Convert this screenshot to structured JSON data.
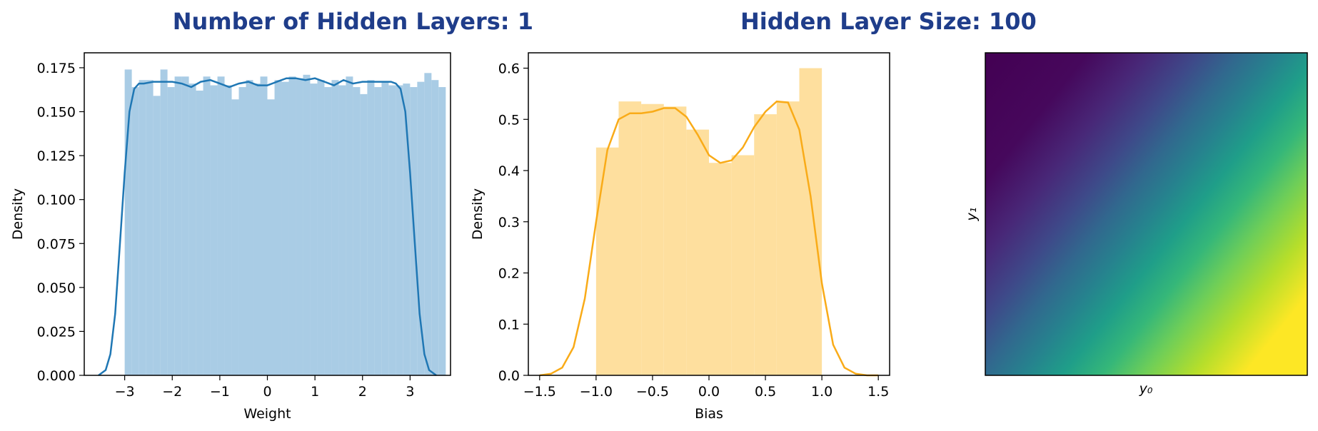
{
  "suptitle": {
    "left": "Number of Hidden Layers: 1",
    "right": "Hidden Layer Size: 100",
    "color": "#1f3d8a"
  },
  "chart_data": [
    {
      "type": "bar",
      "subtype": "histogram-with-kde",
      "xlabel": "Weight",
      "ylabel": "Density",
      "xlim": [
        -3.85,
        3.85
      ],
      "ylim": [
        0,
        0.1835
      ],
      "xticks": [
        -3,
        -2,
        -1,
        0,
        1,
        2,
        3
      ],
      "xtick_labels": [
        "−3",
        "−2",
        "−1",
        "0",
        "1",
        "2",
        "3"
      ],
      "yticks": [
        0,
        0.025,
        0.05,
        0.075,
        0.1,
        0.125,
        0.15,
        0.175
      ],
      "ytick_labels": [
        "0.000",
        "0.025",
        "0.050",
        "0.075",
        "0.100",
        "0.125",
        "0.150",
        "0.175"
      ],
      "bar_color": "#a9cce5",
      "line_color": "#1f77b4",
      "bins": {
        "start": -3.0,
        "width": 0.15,
        "density": [
          0.174,
          0.164,
          0.168,
          0.168,
          0.159,
          0.174,
          0.164,
          0.17,
          0.17,
          0.166,
          0.162,
          0.17,
          0.165,
          0.17,
          0.165,
          0.157,
          0.164,
          0.168,
          0.166,
          0.17,
          0.157,
          0.168,
          0.167,
          0.17,
          0.169,
          0.171,
          0.166,
          0.168,
          0.164,
          0.168,
          0.165,
          0.17,
          0.164,
          0.16,
          0.168,
          0.164,
          0.167,
          0.165,
          0.165,
          0.166,
          0.164,
          0.167,
          0.172,
          0.168,
          0.164
        ]
      },
      "kde": {
        "x": [
          -3.55,
          -3.4,
          -3.3,
          -3.2,
          -3.1,
          -3.0,
          -2.9,
          -2.8,
          -2.7,
          -2.6,
          -2.4,
          -2.2,
          -2.0,
          -1.8,
          -1.6,
          -1.4,
          -1.2,
          -1.0,
          -0.8,
          -0.6,
          -0.4,
          -0.2,
          0.0,
          0.2,
          0.4,
          0.6,
          0.8,
          1.0,
          1.2,
          1.4,
          1.6,
          1.8,
          2.0,
          2.2,
          2.4,
          2.6,
          2.7,
          2.8,
          2.9,
          3.0,
          3.1,
          3.2,
          3.3,
          3.4,
          3.55
        ],
        "y": [
          0.0,
          0.003,
          0.012,
          0.035,
          0.075,
          0.115,
          0.15,
          0.163,
          0.166,
          0.166,
          0.167,
          0.167,
          0.167,
          0.166,
          0.164,
          0.167,
          0.168,
          0.166,
          0.164,
          0.166,
          0.167,
          0.165,
          0.165,
          0.167,
          0.169,
          0.169,
          0.168,
          0.169,
          0.167,
          0.165,
          0.168,
          0.166,
          0.167,
          0.167,
          0.167,
          0.167,
          0.166,
          0.163,
          0.15,
          0.115,
          0.075,
          0.035,
          0.012,
          0.003,
          0.0
        ]
      }
    },
    {
      "type": "bar",
      "subtype": "histogram-with-kde",
      "xlabel": "Bias",
      "ylabel": "Density",
      "xlim": [
        -1.6,
        1.6
      ],
      "ylim": [
        0,
        0.63
      ],
      "xticks": [
        -1.5,
        -1.0,
        -0.5,
        0.0,
        0.5,
        1.0,
        1.5
      ],
      "xtick_labels": [
        "−1.5",
        "−1.0",
        "−0.5",
        "0.0",
        "0.5",
        "1.0",
        "1.5"
      ],
      "yticks": [
        0,
        0.1,
        0.2,
        0.3,
        0.4,
        0.5,
        0.6
      ],
      "ytick_labels": [
        "0.0",
        "0.1",
        "0.2",
        "0.3",
        "0.4",
        "0.5",
        "0.6"
      ],
      "bar_color": "#fedf9e",
      "line_color": "#f9ab18",
      "bins": {
        "start": -1.0,
        "width": 0.2,
        "density": [
          0.445,
          0.535,
          0.53,
          0.525,
          0.48,
          0.415,
          0.43,
          0.51,
          0.535,
          0.6
        ]
      },
      "kde": {
        "x": [
          -1.5,
          -1.4,
          -1.3,
          -1.2,
          -1.1,
          -1.0,
          -0.9,
          -0.8,
          -0.7,
          -0.6,
          -0.5,
          -0.4,
          -0.3,
          -0.2,
          -0.1,
          0.0,
          0.1,
          0.2,
          0.3,
          0.4,
          0.5,
          0.6,
          0.7,
          0.8,
          0.9,
          1.0,
          1.1,
          1.2,
          1.3,
          1.4,
          1.5
        ],
        "y": [
          0.0,
          0.003,
          0.015,
          0.055,
          0.15,
          0.3,
          0.44,
          0.5,
          0.512,
          0.512,
          0.515,
          0.522,
          0.522,
          0.505,
          0.47,
          0.43,
          0.415,
          0.42,
          0.445,
          0.485,
          0.515,
          0.535,
          0.533,
          0.48,
          0.35,
          0.18,
          0.06,
          0.015,
          0.003,
          0.0,
          0.0
        ]
      }
    },
    {
      "type": "heatmap",
      "xlabel": "y₀",
      "ylabel": "y₁",
      "colormap": "viridis",
      "ticks": "none",
      "colors": [
        "#440154",
        "#482878",
        "#3e4989",
        "#31688e",
        "#26828e",
        "#1f9e89",
        "#35b779",
        "#6ece58",
        "#b5de2b",
        "#fde725"
      ]
    }
  ]
}
